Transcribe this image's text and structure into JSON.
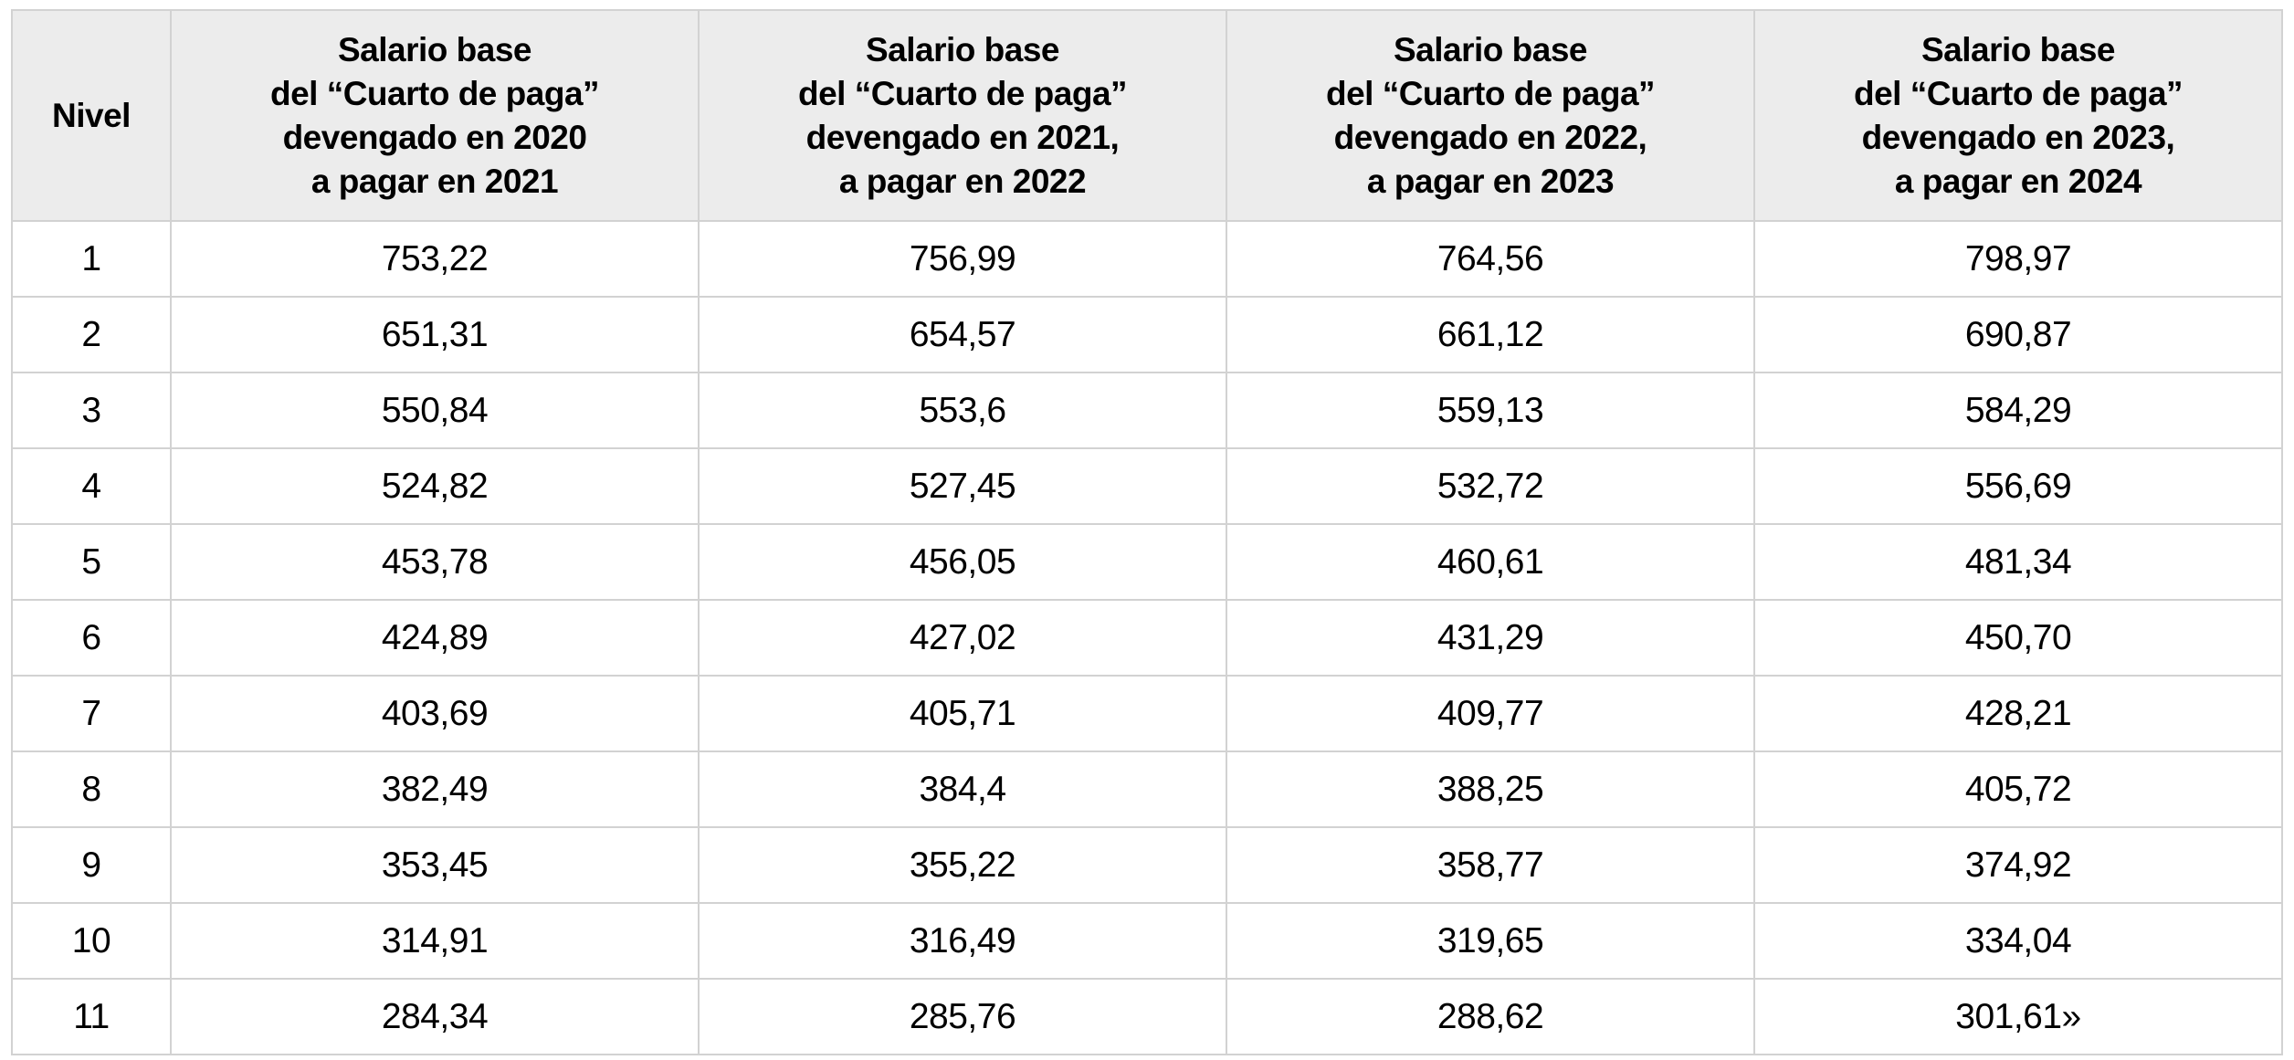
{
  "table": {
    "headers": [
      {
        "label": "Nivel"
      },
      {
        "label": "Salario base\ndel “Cuarto de paga”\ndevengado en 2020\na pagar en 2021"
      },
      {
        "label": "Salario base\ndel “Cuarto de paga”\ndevengado en 2021,\na pagar en 2022"
      },
      {
        "label": "Salario base\ndel “Cuarto de paga”\ndevengado en 2022,\na pagar en 2023"
      },
      {
        "label": "Salario base\ndel “Cuarto de paga”\ndevengado en 2023,\na pagar en 2024"
      }
    ],
    "rows": [
      {
        "nivel": "1",
        "values": [
          "753,22",
          "756,99",
          "764,56",
          "798,97"
        ]
      },
      {
        "nivel": "2",
        "values": [
          "651,31",
          "654,57",
          "661,12",
          "690,87"
        ]
      },
      {
        "nivel": "3",
        "values": [
          "550,84",
          "553,6",
          "559,13",
          "584,29"
        ]
      },
      {
        "nivel": "4",
        "values": [
          "524,82",
          "527,45",
          "532,72",
          "556,69"
        ]
      },
      {
        "nivel": "5",
        "values": [
          "453,78",
          "456,05",
          "460,61",
          "481,34"
        ]
      },
      {
        "nivel": "6",
        "values": [
          "424,89",
          "427,02",
          "431,29",
          "450,70"
        ]
      },
      {
        "nivel": "7",
        "values": [
          "403,69",
          "405,71",
          "409,77",
          "428,21"
        ]
      },
      {
        "nivel": "8",
        "values": [
          "382,49",
          "384,4",
          "388,25",
          "405,72"
        ]
      },
      {
        "nivel": "9",
        "values": [
          "353,45",
          "355,22",
          "358,77",
          "374,92"
        ]
      },
      {
        "nivel": "10",
        "values": [
          "314,91",
          "316,49",
          "319,65",
          "334,04"
        ]
      },
      {
        "nivel": "11",
        "values": [
          "284,34",
          "285,76",
          "288,62",
          "301,61»"
        ]
      }
    ]
  },
  "colors": {
    "header_background": "#ececec",
    "border": "#d2d2d2",
    "text": "#000000",
    "page_background": "#ffffff"
  }
}
